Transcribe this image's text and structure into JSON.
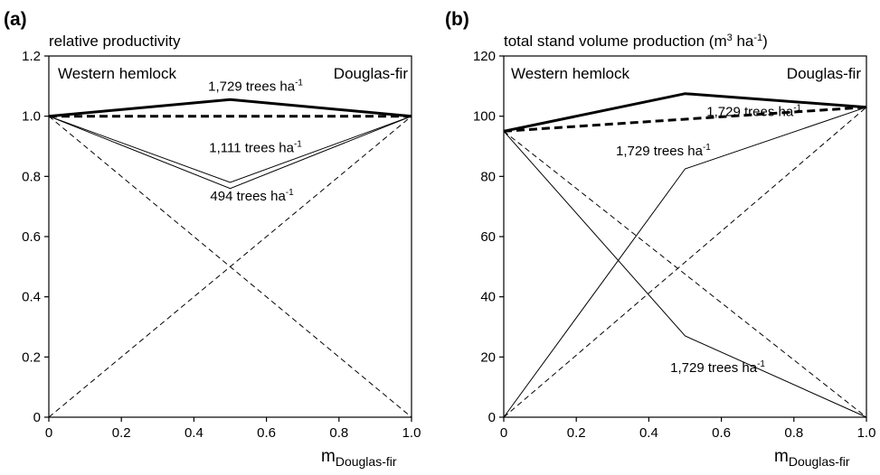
{
  "chart_data": [
    {
      "type": "line",
      "panel_label": "(a)",
      "ylabel": "relative productivity",
      "xlabel": {
        "main": "m",
        "sub": "Douglas-fir"
      },
      "xlim": [
        0,
        1.0
      ],
      "ylim": [
        0,
        1.2
      ],
      "xticks": [
        "0",
        "0.2",
        "0.4",
        "0.6",
        "0.8",
        "1.0"
      ],
      "yticks": [
        "0",
        "0.2",
        "0.4",
        "0.6",
        "0.8",
        "1.0",
        "1.2"
      ],
      "grid": false,
      "legend": "none",
      "corner_labels": {
        "left": "Western hemlock",
        "right": "Douglas-fir"
      },
      "series": [
        {
          "x": [
            0,
            0.5,
            1.0
          ],
          "y": [
            1.0,
            1.055,
            1.0
          ],
          "style": "solid",
          "weight": "thick"
        },
        {
          "x": [
            0,
            1.0
          ],
          "y": [
            1.0,
            1.0
          ],
          "style": "dashed",
          "weight": "thick"
        },
        {
          "x": [
            0,
            0.5,
            1.0
          ],
          "y": [
            1.0,
            0.78,
            1.0
          ],
          "style": "solid",
          "weight": "thin"
        },
        {
          "x": [
            0,
            0.5,
            1.0
          ],
          "y": [
            1.0,
            0.76,
            1.0
          ],
          "style": "solid",
          "weight": "thin"
        },
        {
          "x": [
            0,
            1.0
          ],
          "y": [
            1.0,
            0.0
          ],
          "style": "dashed",
          "weight": "thin"
        },
        {
          "x": [
            0,
            1.0
          ],
          "y": [
            0.0,
            1.0
          ],
          "style": "dashed",
          "weight": "thin"
        }
      ],
      "annotations": [
        {
          "text": "1,729 trees ha",
          "sup": "-1",
          "x": 0.57,
          "y": 1.085
        },
        {
          "text": "1,111 trees ha",
          "sup": "-1",
          "x": 0.57,
          "y": 0.88
        },
        {
          "text": "494 trees ha",
          "sup": "-1",
          "x": 0.56,
          "y": 0.72
        }
      ]
    },
    {
      "type": "line",
      "panel_label": "(b)",
      "ylabel": {
        "main": "total stand volume production (m",
        "sup1": "3",
        "mid": " ha",
        "sup2": "-1",
        "end": ")"
      },
      "xlabel": {
        "main": "m",
        "sub": "Douglas-fir"
      },
      "xlim": [
        0,
        1.0
      ],
      "ylim": [
        0,
        120
      ],
      "xticks": [
        "0",
        "0.2",
        "0.4",
        "0.6",
        "0.8",
        "1.0"
      ],
      "yticks": [
        "0",
        "20",
        "40",
        "60",
        "80",
        "100",
        "120"
      ],
      "grid": false,
      "legend": "none",
      "corner_labels": {
        "left": "Western hemlock",
        "right": "Douglas-fir"
      },
      "series": [
        {
          "x": [
            0,
            0.5,
            1.0
          ],
          "y": [
            95,
            107.5,
            103
          ],
          "style": "solid",
          "weight": "thick"
        },
        {
          "x": [
            0,
            1.0
          ],
          "y": [
            95,
            103
          ],
          "style": "dashed",
          "weight": "thick"
        },
        {
          "x": [
            0,
            0.5,
            1.0
          ],
          "y": [
            0,
            82.5,
            103
          ],
          "style": "solid",
          "weight": "thin"
        },
        {
          "x": [
            0,
            0.5,
            1.0
          ],
          "y": [
            95,
            27,
            0
          ],
          "style": "solid",
          "weight": "thin"
        },
        {
          "x": [
            0,
            1.0
          ],
          "y": [
            0,
            103
          ],
          "style": "dashed",
          "weight": "thin"
        },
        {
          "x": [
            0,
            1.0
          ],
          "y": [
            95,
            0
          ],
          "style": "dashed",
          "weight": "thin"
        }
      ],
      "annotations": [
        {
          "text": "1,729 trees ha",
          "sup": "-1",
          "x": 0.69,
          "y": 100
        },
        {
          "text": "1,729 trees ha",
          "sup": "-1",
          "x": 0.44,
          "y": 87
        },
        {
          "text": "1,729 trees ha",
          "sup": "-1",
          "x": 0.59,
          "y": 15
        }
      ]
    }
  ]
}
